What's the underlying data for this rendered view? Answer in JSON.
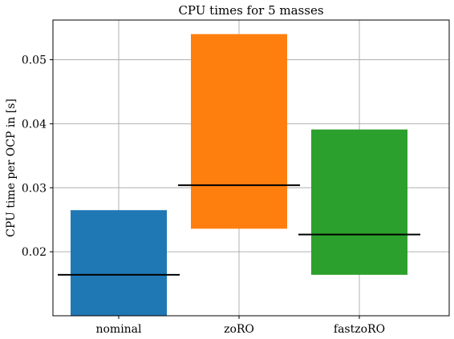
{
  "chart_data": {
    "type": "bar",
    "title": "CPU times for 5 masses",
    "xlabel": "",
    "ylabel": "CPU time per OCP in [s]",
    "categories": [
      "nominal",
      "zoRO",
      "fastzoRO"
    ],
    "bars": [
      {
        "category": "nominal",
        "min": 0.01,
        "max": 0.0265,
        "median": 0.0164,
        "color": "#1f77b4"
      },
      {
        "category": "zoRO",
        "min": 0.0236,
        "max": 0.054,
        "median": 0.0304,
        "color": "#ff7f0e"
      },
      {
        "category": "fastzoRO",
        "min": 0.0164,
        "max": 0.0391,
        "median": 0.0227,
        "color": "#2ca02c"
      }
    ],
    "ylim": [
      0.01,
      0.0562
    ],
    "yticks": [
      0.02,
      0.03,
      0.04,
      0.05
    ],
    "ytick_labels": [
      "0.02",
      "0.03",
      "0.04",
      "0.05"
    ],
    "grid": true
  }
}
